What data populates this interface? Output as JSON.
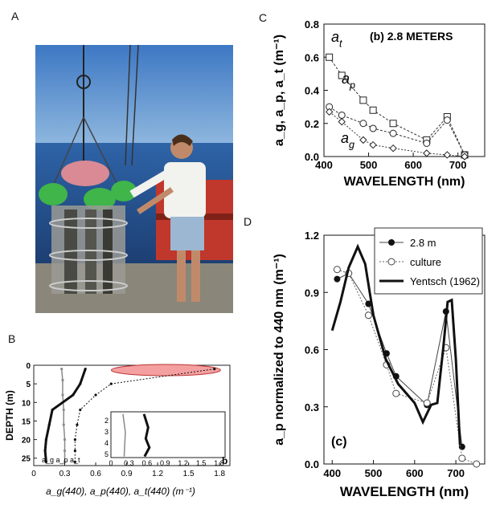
{
  "panels": {
    "a_letter": "A",
    "b_letter": "B",
    "c_letter": "C",
    "d_letter": "D"
  },
  "photo": {
    "description_icon": "photo-icon"
  },
  "chart_data": [
    {
      "id": "panel-b",
      "type": "scatter",
      "xlabel": "a_g(440), a_p(440), a_t(440) (m⁻¹)",
      "ylabel": "DEPTH (m)",
      "xlim": [
        0,
        1.9
      ],
      "ylim": [
        27,
        0
      ],
      "xticks": [
        "0",
        "0.3",
        "0.6",
        "0.9",
        "1.2",
        "1.5",
        "1.8"
      ],
      "yticks": [
        "0",
        "5",
        "10",
        "15",
        "20",
        "25"
      ],
      "corner_labels": [
        "a_g",
        "a_p",
        "a_t"
      ],
      "panel_tag": "b",
      "series": [
        {
          "name": "a_g",
          "x": [
            0.27,
            0.28,
            0.28,
            0.29,
            0.29,
            0.3,
            0.3,
            0.3
          ],
          "y": [
            1,
            4,
            8,
            12,
            16,
            20,
            23,
            26
          ]
        },
        {
          "name": "a_p",
          "x": [
            0.5,
            0.45,
            0.38,
            0.18,
            0.15,
            0.12,
            0.11,
            0.12
          ],
          "y": [
            1,
            5,
            8,
            12,
            16,
            20,
            23,
            26
          ]
        },
        {
          "name": "a_t",
          "x": [
            1.75,
            0.75,
            0.6,
            0.45,
            0.42,
            0.4,
            0.4,
            0.4
          ],
          "y": [
            1,
            5,
            8,
            12,
            16,
            20,
            23,
            26
          ]
        }
      ],
      "inset": {
        "xticks": [
          "0",
          "0.3",
          "0.6",
          "0.9",
          "1.2",
          "1.5",
          "1.8"
        ],
        "yticks": [
          "2",
          "3",
          "4",
          "5"
        ],
        "ylim": [
          5.3,
          1.2
        ],
        "xlim": [
          0,
          1.9
        ]
      }
    },
    {
      "id": "panel-c",
      "type": "line",
      "title": "(b) 2.8 METERS",
      "xlabel": "WAVELENGTH (nm)",
      "ylabel": "a_g, a_p, a_t (m⁻¹)",
      "xlim": [
        400,
        760
      ],
      "ylim": [
        0,
        0.8
      ],
      "xticks": [
        400,
        500,
        600,
        700
      ],
      "yticks": [
        "0.0",
        "0.2",
        "0.4",
        "0.6",
        "0.8"
      ],
      "series": [
        {
          "name": "a_t",
          "marker": "square",
          "x": [
            412,
            440,
            488,
            510,
            555,
            630,
            676,
            715
          ],
          "y": [
            0.6,
            0.49,
            0.34,
            0.28,
            0.2,
            0.1,
            0.24,
            0.01
          ]
        },
        {
          "name": "a_p",
          "marker": "circle",
          "x": [
            412,
            440,
            488,
            510,
            555,
            630,
            676,
            715
          ],
          "y": [
            0.3,
            0.25,
            0.2,
            0.17,
            0.14,
            0.08,
            0.22,
            0.01
          ]
        },
        {
          "name": "a_g",
          "marker": "diamond",
          "x": [
            412,
            440,
            488,
            510,
            555,
            630,
            676,
            715
          ],
          "y": [
            0.27,
            0.21,
            0.1,
            0.07,
            0.05,
            0.02,
            0.01,
            0.0
          ]
        }
      ]
    },
    {
      "id": "panel-d",
      "type": "line",
      "xlabel": "WAVELENGTH (nm)",
      "ylabel": "a_p normalized to 440 nm (m⁻¹)",
      "xlim": [
        380,
        770
      ],
      "ylim": [
        0,
        1.2
      ],
      "xticks": [
        400,
        500,
        600,
        700
      ],
      "yticks": [
        "0.0",
        "0.3",
        "0.6",
        "0.9",
        "1.2"
      ],
      "panel_tag": "(c)",
      "legend_position": "top-right",
      "series": [
        {
          "name": "2.8 m",
          "style": "solid-filled",
          "x": [
            412,
            440,
            488,
            532,
            555,
            630,
            676,
            715
          ],
          "y": [
            0.97,
            1.0,
            0.84,
            0.58,
            0.46,
            0.31,
            0.8,
            0.09
          ]
        },
        {
          "name": "culture",
          "style": "dotted-open",
          "x": [
            412,
            440,
            488,
            532,
            555,
            630,
            676,
            715,
            750
          ],
          "y": [
            1.02,
            1.0,
            0.78,
            0.52,
            0.37,
            0.32,
            0.61,
            0.03,
            0.0
          ]
        },
        {
          "name": "Yentsch (1962)",
          "style": "thick-solid",
          "x": [
            400,
            420,
            440,
            462,
            480,
            500,
            530,
            560,
            600,
            620,
            640,
            655,
            670,
            680,
            690,
            700,
            710
          ],
          "y": [
            0.7,
            0.85,
            1.03,
            1.14,
            1.05,
            0.78,
            0.55,
            0.42,
            0.32,
            0.22,
            0.31,
            0.32,
            0.62,
            0.85,
            0.86,
            0.55,
            0.1
          ]
        }
      ]
    }
  ]
}
